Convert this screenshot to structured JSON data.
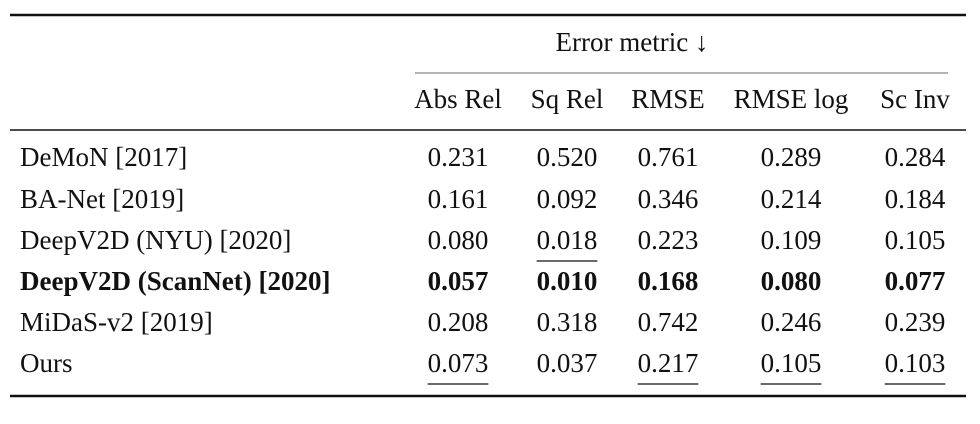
{
  "table": {
    "group_header": "Error metric ↓",
    "columns": [
      "Abs Rel",
      "Sq Rel",
      "RMSE",
      "RMSE log",
      "Sc Inv"
    ],
    "rows": [
      {
        "method": "DeMoN [2017]",
        "values": [
          "0.231",
          "0.520",
          "0.761",
          "0.289",
          "0.284"
        ]
      },
      {
        "method": "BA-Net [2019]",
        "values": [
          "0.161",
          "0.092",
          "0.346",
          "0.214",
          "0.184"
        ]
      },
      {
        "method": "DeepV2D (NYU) [2020]",
        "values": [
          "0.080",
          "0.018",
          "0.223",
          "0.109",
          "0.105"
        ]
      },
      {
        "method": "DeepV2D (ScanNet) [2020]",
        "values": [
          "0.057",
          "0.010",
          "0.168",
          "0.080",
          "0.077"
        ]
      },
      {
        "method": "MiDaS-v2 [2019]",
        "values": [
          "0.208",
          "0.318",
          "0.742",
          "0.246",
          "0.239"
        ]
      },
      {
        "method": "Ours",
        "values": [
          "0.073",
          "0.037",
          "0.217",
          "0.105",
          "0.103"
        ]
      }
    ]
  }
}
